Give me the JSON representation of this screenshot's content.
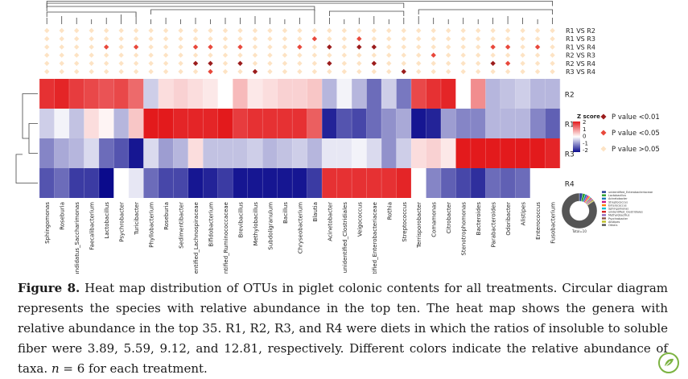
{
  "figure": {
    "genera": [
      "Sphingomonas",
      "Roseburia",
      "Candidatus_Saccharimonas",
      "Faecalibacterium",
      "Lactobacillus",
      "Psychrobacter",
      "Turicibacter",
      "Phyllobacterium",
      "Roseburia",
      "Sedimentibacter",
      "unidentified_Lachnospiraceae",
      "Bifidobacterium",
      "unidentified_Ruminococcaceae",
      "Brevibacillus",
      "Methylobacillus",
      "Subdoligranulum",
      "Bacillus",
      "Chryseobacterium",
      "Blautia",
      "Acinetobacter",
      "unidentified_Clostridiales",
      "Veigococcus",
      "unidentified_Enterobacteriaceae",
      "Rothia",
      "Streptococcus",
      "Terrisporobacter",
      "Comamonas",
      "Citrobacter",
      "Stenotrophomonas",
      "Bacteroides",
      "Parabacteroides",
      "Odoribacter",
      "Alistipes",
      "Enterococcus",
      "Fusobacterium"
    ],
    "treatments": [
      "R2",
      "R1",
      "R3",
      "R4"
    ],
    "heatmap_zscores": [
      [
        1.8,
        1.9,
        1.7,
        1.6,
        1.5,
        1.6,
        1.3,
        -0.4,
        0.3,
        0.4,
        0.3,
        0.2,
        0,
        0.6,
        0.2,
        0.3,
        0.4,
        0.4,
        0.5,
        -0.6,
        -0.1,
        -0.6,
        -1.2,
        -0.4,
        -1.1,
        1.6,
        1.8,
        1.9,
        0,
        1,
        -0.6,
        -0.5,
        -0.4,
        -0.6,
        -0.6
      ],
      [
        -0.4,
        -0.1,
        -0.5,
        0.3,
        0.1,
        -0.6,
        0.5,
        2,
        2,
        1.9,
        1.9,
        1.9,
        2,
        1.7,
        1.8,
        1.8,
        1.8,
        1.8,
        1.4,
        -1.8,
        -1.4,
        -1.5,
        -1.2,
        -0.9,
        -0.7,
        -1.9,
        -1.8,
        -0.8,
        -1.0,
        -1.0,
        -0.6,
        -0.6,
        -0.6,
        -1.0,
        -1.3
      ],
      [
        -1.0,
        -0.7,
        -0.6,
        -0.3,
        -1.2,
        -1.4,
        -1.9,
        -0.3,
        -0.8,
        -0.6,
        0.3,
        -0.5,
        -0.5,
        -0.5,
        -0.4,
        -0.6,
        -0.5,
        -0.4,
        -0.6,
        -0.2,
        -0.2,
        -0.1,
        -0.3,
        -0.9,
        -0.4,
        0.3,
        0.4,
        0.2,
        2,
        2,
        2,
        2,
        2,
        2,
        1.9
      ],
      [
        -1.4,
        -1.2,
        -1.6,
        -1.6,
        -2,
        0,
        -0.2,
        -1.2,
        -1.5,
        -1.5,
        -1.9,
        -1.8,
        -1.6,
        -1.9,
        -1.9,
        -1.9,
        -1.9,
        -1.9,
        -1.6,
        1.8,
        1.8,
        1.8,
        1.8,
        1.8,
        1.9,
        0,
        -1.0,
        -1.3,
        -1.5,
        -1.7,
        -1.2,
        -1.3,
        -1.2,
        0,
        0
      ]
    ],
    "comparisons": [
      "R1 VS R2",
      "R1 VS R3",
      "R1 VS R4",
      "R2 VS R3",
      "R2 VS R4",
      "R3 VS R4"
    ],
    "significance": {
      "R1 VS R2": [],
      "R1 VS R3": [
        {
          "col": 18,
          "p": "<0.05"
        },
        {
          "col": 21,
          "p": "<0.05"
        }
      ],
      "R1 VS R4": [
        {
          "col": 4,
          "p": "<0.05"
        },
        {
          "col": 6,
          "p": "<0.05"
        },
        {
          "col": 10,
          "p": "<0.05"
        },
        {
          "col": 11,
          "p": "<0.05"
        },
        {
          "col": 13,
          "p": "<0.05"
        },
        {
          "col": 17,
          "p": "<0.05"
        },
        {
          "col": 19,
          "p": "<0.01"
        },
        {
          "col": 21,
          "p": "<0.01"
        },
        {
          "col": 22,
          "p": "<0.01"
        },
        {
          "col": 30,
          "p": "<0.05"
        },
        {
          "col": 31,
          "p": "<0.05"
        },
        {
          "col": 33,
          "p": "<0.05"
        }
      ],
      "R2 VS R3": [
        {
          "col": 26,
          "p": "<0.05"
        }
      ],
      "R2 VS R4": [
        {
          "col": 10,
          "p": "<0.01"
        },
        {
          "col": 11,
          "p": "<0.01"
        },
        {
          "col": 13,
          "p": "<0.01"
        },
        {
          "col": 19,
          "p": "<0.01"
        },
        {
          "col": 22,
          "p": "<0.01"
        },
        {
          "col": 30,
          "p": "<0.01"
        },
        {
          "col": 31,
          "p": "<0.05"
        }
      ],
      "R3 VS R4": [
        {
          "col": 11,
          "p": "<0.05"
        },
        {
          "col": 14,
          "p": "<0.01"
        },
        {
          "col": 24,
          "p": "<0.01"
        }
      ]
    },
    "zscore_legend": {
      "title": "Z score",
      "ticks": [
        "2",
        "1",
        "0",
        "-1",
        "-2"
      ]
    },
    "pvalue_legend": [
      {
        "label": "P value <0.01",
        "color": "#9b1c1c"
      },
      {
        "label": "P value <0.05",
        "color": "#e8483b"
      },
      {
        "label": "P value >0.05",
        "color": "#fde3c4"
      }
    ],
    "colors": {
      "high": "#e31a1c",
      "mid": "#ffffff",
      "low": "#0a0a8c"
    },
    "donut": {
      "center_label": "Total=10",
      "segments": [
        {
          "name": "unidentified_Enterobacteriaceae",
          "value": 3,
          "color": "#1f3a93"
        },
        {
          "name": "Lactobacillus",
          "value": 2.5,
          "color": "#2ca02c"
        },
        {
          "name": "Acinetobacter",
          "value": 2,
          "color": "#1f77b4"
        },
        {
          "name": "Streptococcus",
          "value": 1.5,
          "color": "#c71585"
        },
        {
          "name": "Enterococcus",
          "value": 1.5,
          "color": "#ff7f0e"
        },
        {
          "name": "Sphingomonas",
          "value": 1,
          "color": "#17becf"
        },
        {
          "name": "unidentified_Clostridiales",
          "value": 1,
          "color": "#d62728"
        },
        {
          "name": "Methylobacillus",
          "value": 1,
          "color": "#9467bd"
        },
        {
          "name": "Psychrobacter",
          "value": 1,
          "color": "#8c564b"
        },
        {
          "name": "Alistipes",
          "value": 1,
          "color": "#bcbd22"
        },
        {
          "name": "Others",
          "value": 84.5,
          "color": "#555555"
        }
      ]
    }
  },
  "caption": {
    "label": "Figure 8.",
    "text": "Heat map distribution of OTUs in piglet colonic contents for all treatments. Circular diagram represents the species with relative abundance in the top ten. The heat map shows the genera with relative abundance in the top 35. R1, R2, R3, and R4 were diets in which the ratios of insoluble to soluble fiber were 3.89, 5.59, 9.12, and 12.81, respectively. Different colors indicate the relative abundance of taxa.",
    "n_prefix": "n",
    "n_suffix": " = 6 for each treatment."
  }
}
